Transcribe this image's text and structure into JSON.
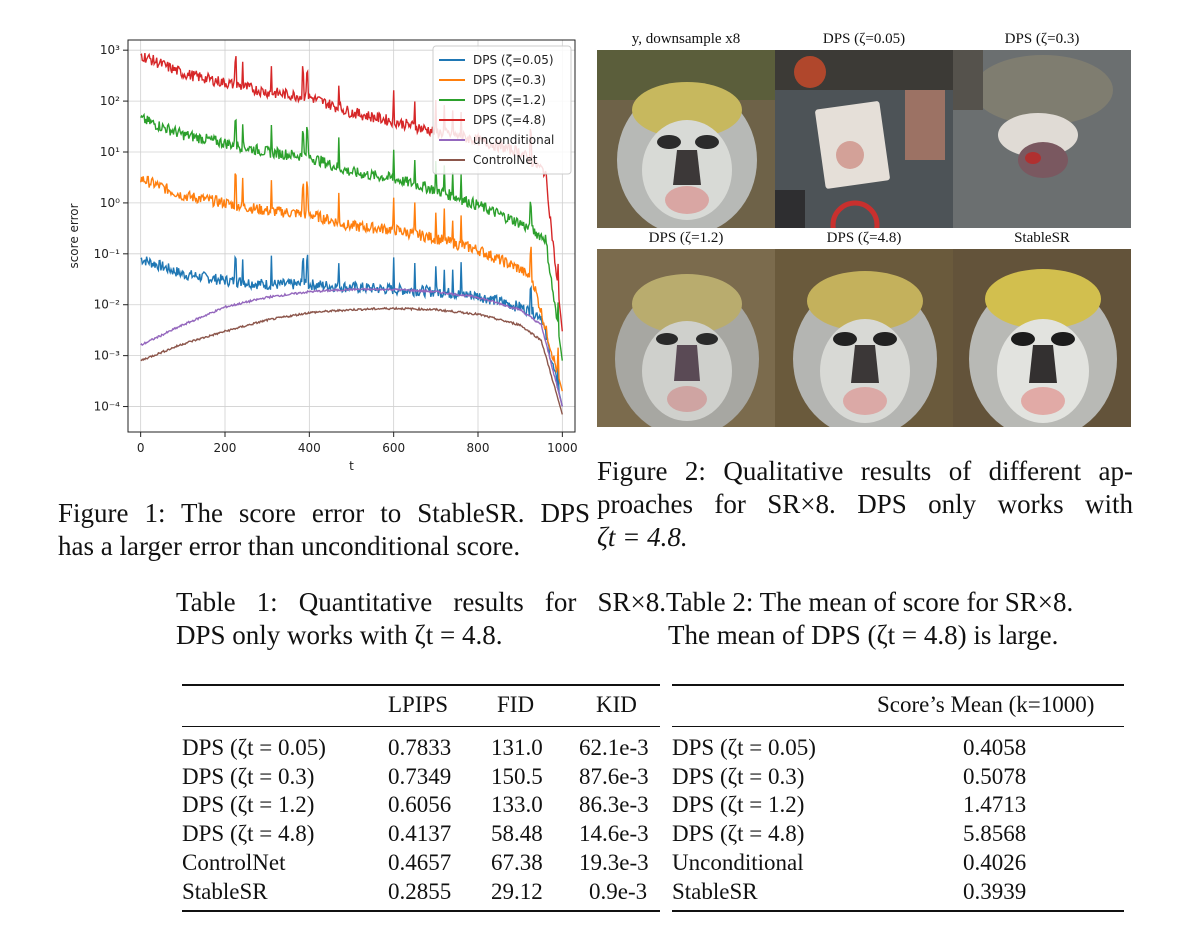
{
  "figure1": {
    "caption": "Figure 1: The score error to StableSR. DPS has a larger error than unconditional score.",
    "caption_line1": "Figure 1: The score error to StableSR. DPS",
    "caption_line2": "has a larger error than unconditional score."
  },
  "figure2": {
    "caption_line1": "Figure 2: Qualitative results of different ap-",
    "caption_line2": "proaches for SR×8. DPS only works with",
    "caption_line3_math": "ζt = 4.8.",
    "panels": [
      {
        "label": "y, downsample x8"
      },
      {
        "label": "DPS (ζ=0.05)"
      },
      {
        "label": "DPS (ζ=0.3)"
      },
      {
        "label": "DPS (ζ=1.2)"
      },
      {
        "label": "DPS (ζ=4.8)"
      },
      {
        "label": "StableSR"
      }
    ]
  },
  "table1": {
    "caption_line1": "Table 1: Quantitative results for SR×8.",
    "caption_line2": "DPS only works with ζt = 4.8.",
    "headers": [
      "",
      "LPIPS",
      "FID",
      "KID"
    ],
    "rows": [
      [
        "DPS (ζt = 0.05)",
        "0.7833",
        "131.0",
        "62.1e-3"
      ],
      [
        "DPS (ζt = 0.3)",
        "0.7349",
        "150.5",
        "87.6e-3"
      ],
      [
        "DPS (ζt = 1.2)",
        "0.6056",
        "133.0",
        "86.3e-3"
      ],
      [
        "DPS (ζt = 4.8)",
        "0.4137",
        "58.48",
        "14.6e-3"
      ],
      [
        "ControlNet",
        "0.4657",
        "67.38",
        "19.3e-3"
      ],
      [
        "StableSR",
        "0.2855",
        "29.12",
        "0.9e-3"
      ]
    ]
  },
  "table2": {
    "caption_line1": "Table 2: The mean of score for SR×8.",
    "caption_line2": "The mean of DPS (ζt = 4.8) is large.",
    "header": "Score’s Mean (k=1000)",
    "rows": [
      [
        "DPS (ζt = 0.05)",
        "0.4058"
      ],
      [
        "DPS (ζt = 0.3)",
        "0.5078"
      ],
      [
        "DPS (ζt = 1.2)",
        "1.4713"
      ],
      [
        "DPS (ζt = 4.8)",
        "5.8568"
      ],
      [
        "Unconditional",
        "0.4026"
      ],
      [
        "StableSR",
        "0.3939"
      ]
    ]
  },
  "chart_data": {
    "type": "line",
    "xlabel": "t",
    "ylabel": "score error",
    "xlim": [
      -30,
      1030
    ],
    "ylim_log10": [
      -4.5,
      3.2
    ],
    "yscale": "log",
    "xticks": [
      0,
      200,
      400,
      600,
      800,
      1000
    ],
    "yticks": [
      "10⁻⁴",
      "10⁻³",
      "10⁻²",
      "10⁻¹",
      "10⁰",
      "10¹",
      "10²",
      "10³"
    ],
    "grid": true,
    "legend_position": "top-right",
    "series": [
      {
        "name": "DPS (ζ=0.05)",
        "color": "#1f77b4",
        "x": [
          0,
          100,
          200,
          300,
          400,
          500,
          600,
          700,
          800,
          900,
          950,
          1000
        ],
        "y": [
          0.08,
          0.04,
          0.03,
          0.025,
          0.025,
          0.022,
          0.02,
          0.018,
          0.015,
          0.009,
          0.006,
          0.0001
        ]
      },
      {
        "name": "DPS (ζ=0.3)",
        "color": "#ff7f0e",
        "x": [
          0,
          100,
          200,
          300,
          400,
          500,
          600,
          700,
          800,
          900,
          930,
          1000
        ],
        "y": [
          3.0,
          1.4,
          1.0,
          0.7,
          0.6,
          0.35,
          0.3,
          0.2,
          0.12,
          0.05,
          0.03,
          0.0002
        ]
      },
      {
        "name": "DPS (ζ=1.2)",
        "color": "#2ca02c",
        "x": [
          0,
          100,
          200,
          300,
          400,
          500,
          600,
          700,
          800,
          900,
          960,
          1000
        ],
        "y": [
          45,
          22,
          15,
          10,
          8,
          4,
          3,
          1.8,
          0.9,
          0.4,
          0.2,
          0.0008
        ]
      },
      {
        "name": "DPS (ζ=4.8)",
        "color": "#d62728",
        "x": [
          0,
          100,
          200,
          300,
          400,
          500,
          600,
          700,
          800,
          900,
          960,
          1000
        ],
        "y": [
          800,
          350,
          230,
          150,
          120,
          60,
          40,
          25,
          17,
          10,
          4,
          0.003
        ]
      },
      {
        "name": "unconditional",
        "color": "#9467bd",
        "x": [
          0,
          100,
          200,
          300,
          400,
          500,
          600,
          700,
          800,
          900,
          950,
          1000
        ],
        "y": [
          0.0016,
          0.004,
          0.009,
          0.014,
          0.018,
          0.02,
          0.02,
          0.018,
          0.014,
          0.008,
          0.004,
          0.0001
        ]
      },
      {
        "name": "ControlNet",
        "color": "#8c564b",
        "x": [
          0,
          100,
          200,
          300,
          400,
          500,
          600,
          700,
          800,
          900,
          950,
          1000
        ],
        "y": [
          0.0008,
          0.0017,
          0.003,
          0.005,
          0.007,
          0.008,
          0.0085,
          0.008,
          0.0065,
          0.004,
          0.002,
          7e-05
        ]
      }
    ],
    "spike_points": [
      {
        "series": 0,
        "x": [
          225,
          242,
          310,
          385,
          395,
          470,
          600,
          650,
          700,
          720,
          740,
          760,
          925,
          990
        ],
        "factor": 2.2
      },
      {
        "series": 1,
        "x": [
          225,
          242,
          310,
          385,
          395,
          470,
          600,
          650,
          700,
          720,
          740,
          760,
          925,
          990
        ],
        "factor": 2.2
      },
      {
        "series": 2,
        "x": [
          225,
          242,
          310,
          385,
          395,
          470,
          600,
          650,
          700,
          720,
          740,
          760,
          925,
          990
        ],
        "factor": 2.2
      },
      {
        "series": 3,
        "x": [
          225,
          242,
          310,
          385,
          395,
          470,
          600,
          650,
          700,
          720,
          740,
          760,
          925,
          990
        ],
        "factor": 2.2
      }
    ]
  }
}
